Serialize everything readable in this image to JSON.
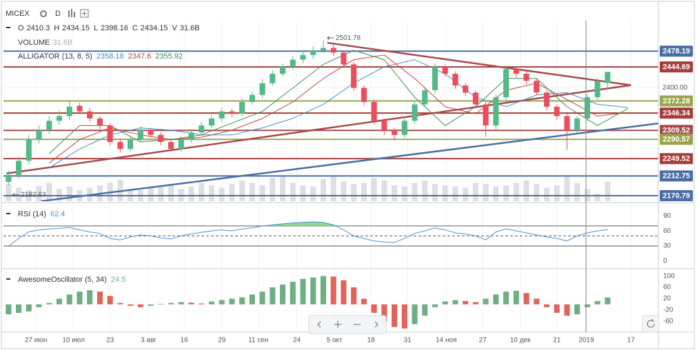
{
  "chart_data": [
    {
      "type": "candlestick",
      "title": "MICEX",
      "interval": "D",
      "legend_keys": [
        "O",
        "H",
        "L",
        "C",
        "V"
      ],
      "up_color": "#53b987",
      "down_color": "#eb4d5c",
      "xlim": [
        -0.5,
        64
      ],
      "ylim": [
        2159,
        2543
      ],
      "yticks": [
        {
          "value": 2400,
          "label": "2400.00"
        }
      ],
      "xticks": [
        {
          "value": 2.7,
          "label": "27 июн"
        },
        {
          "value": 6.4,
          "label": "10 июл"
        },
        {
          "value": 10,
          "label": "23"
        },
        {
          "value": 13.8,
          "label": "3 авг"
        },
        {
          "value": 17.3,
          "label": "16"
        },
        {
          "value": 21,
          "label": "29"
        },
        {
          "value": 24.6,
          "label": "11 сен"
        },
        {
          "value": 28.4,
          "label": "24"
        },
        {
          "value": 32.1,
          "label": "5 окт"
        },
        {
          "value": 35.7,
          "label": "18"
        },
        {
          "value": 39.3,
          "label": "31"
        },
        {
          "value": 43.1,
          "label": "14 ноя"
        },
        {
          "value": 46.7,
          "label": "27"
        },
        {
          "value": 50.4,
          "label": "10 дек"
        },
        {
          "value": 54,
          "label": "21"
        },
        {
          "value": 56.9,
          "label": "2019"
        },
        {
          "value": 61.3,
          "label": "17"
        }
      ],
      "open": [
        2200,
        2215,
        2245,
        2290,
        2310,
        2330,
        2340,
        2362,
        2350,
        2335,
        2320,
        2285,
        2270,
        2290,
        2310,
        2300,
        2285,
        2270,
        2290,
        2305,
        2320,
        2335,
        2350,
        2345,
        2370,
        2385,
        2410,
        2430,
        2445,
        2460,
        2470,
        2480,
        2485,
        2475,
        2450,
        2400,
        2370,
        2330,
        2310,
        2300,
        2330,
        2365,
        2395,
        2445,
        2430,
        2405,
        2390,
        2365,
        2320,
        2380,
        2440,
        2430,
        2415,
        2390,
        2360,
        2340,
        2310,
        2335,
        2380,
        2410.3
      ],
      "high": [
        2225,
        2255,
        2300,
        2320,
        2340,
        2352,
        2372,
        2368,
        2358,
        2340,
        2325,
        2292,
        2298,
        2318,
        2315,
        2305,
        2292,
        2298,
        2312,
        2328,
        2342,
        2358,
        2356,
        2378,
        2392,
        2418,
        2438,
        2452,
        2468,
        2478,
        2488,
        2501.78,
        2492,
        2480,
        2455,
        2405,
        2375,
        2335,
        2315,
        2338,
        2372,
        2402,
        2452,
        2450,
        2435,
        2410,
        2395,
        2370,
        2386,
        2448,
        2446,
        2435,
        2420,
        2395,
        2365,
        2345,
        2340,
        2386,
        2420,
        2434.15
      ],
      "low": [
        2192.63,
        2208,
        2238,
        2282,
        2302,
        2322,
        2332,
        2344,
        2328,
        2312,
        2278,
        2262,
        2265,
        2284,
        2294,
        2278,
        2264,
        2265,
        2284,
        2298,
        2314,
        2328,
        2338,
        2340,
        2364,
        2378,
        2404,
        2424,
        2438,
        2452,
        2462,
        2474,
        2468,
        2444,
        2394,
        2362,
        2322,
        2300,
        2288,
        2294,
        2324,
        2358,
        2388,
        2424,
        2398,
        2382,
        2358,
        2296,
        2312,
        2372,
        2422,
        2408,
        2384,
        2352,
        2332,
        2268,
        2302,
        2330,
        2375,
        2398.16
      ],
      "close": [
        2215,
        2245,
        2290,
        2310,
        2330,
        2340,
        2360,
        2350,
        2335,
        2320,
        2285,
        2270,
        2290,
        2310,
        2300,
        2285,
        2270,
        2290,
        2305,
        2320,
        2335,
        2350,
        2345,
        2370,
        2385,
        2410,
        2430,
        2445,
        2460,
        2470,
        2480,
        2485,
        2475,
        2450,
        2400,
        2370,
        2330,
        2310,
        2300,
        2330,
        2365,
        2395,
        2445,
        2430,
        2405,
        2390,
        2365,
        2320,
        2380,
        2440,
        2430,
        2415,
        2390,
        2360,
        2340,
        2310,
        2335,
        2380,
        2415,
        2434.15
      ],
      "volume": {
        "name": "VOLUME",
        "value_label": "31.6B",
        "color": "#dcdfe4",
        "ylim": [
          0,
          45
        ],
        "values": [
          28,
          22,
          18,
          25,
          30,
          20,
          24,
          18,
          22,
          26,
          30,
          35,
          20,
          18,
          22,
          25,
          28,
          20,
          24,
          30,
          26,
          22,
          28,
          34,
          30,
          26,
          38,
          42,
          30,
          26,
          24,
          36,
          40,
          32,
          28,
          30,
          38,
          34,
          26,
          24,
          30,
          34,
          28,
          26,
          24,
          22,
          30,
          28,
          24,
          26,
          30,
          34,
          28,
          22,
          26,
          40,
          30,
          20,
          12,
          31.6
        ]
      },
      "alligator": {
        "name": "ALLIGATOR (13, 8, 5)",
        "x": [
          4,
          7,
          10,
          13,
          16,
          19,
          22,
          25,
          28,
          31,
          34,
          37,
          40,
          43,
          46,
          49,
          52,
          55,
          58,
          61
        ],
        "series": [
          {
            "color": "#3d8fc8",
            "values": [
              2230,
              2270,
              2300,
              2315,
              2310,
              2300,
              2300,
              2315,
              2335,
              2365,
              2410,
              2445,
              2460,
              2430,
              2380,
              2360,
              2385,
              2390,
              2365,
              2358.18
            ]
          },
          {
            "color": "#c0463c",
            "values": [
              2240,
              2290,
              2315,
              2300,
              2290,
              2295,
              2310,
              2335,
              2370,
              2420,
              2460,
              2470,
              2420,
              2360,
              2345,
              2395,
              2410,
              2375,
              2340,
              2347.6
            ]
          },
          {
            "color": "#3f8a4c",
            "values": [
              2260,
              2320,
              2320,
              2285,
              2290,
              2300,
              2325,
              2350,
              2400,
              2450,
              2480,
              2460,
              2380,
              2320,
              2360,
              2420,
              2420,
              2360,
              2320,
              2355.92
            ]
          }
        ]
      },
      "levels": [
        {
          "value": 2478.19,
          "color": "#4a6fa5"
        },
        {
          "value": 2444.69,
          "color": "#a63d3d"
        },
        {
          "value": 2372.28,
          "color": "#9aa54b"
        },
        {
          "value": 2346.34,
          "color": "#a63d3d"
        },
        {
          "value": 2309.52,
          "color": "#a64b4b"
        },
        {
          "value": 2290.57,
          "color": "#9aa54b"
        },
        {
          "value": 2249.52,
          "color": "#a63d3d"
        },
        {
          "value": 2212.75,
          "color": "#4a6fa5"
        },
        {
          "value": 2170.79,
          "color": "#4a6fa5"
        }
      ],
      "trendlines": [
        {
          "color": "#a64b4b",
          "points": [
            [
              -0.2,
              2218
            ],
            [
              61.3,
              2405.8
            ]
          ]
        },
        {
          "color": "#a64b4b",
          "points": [
            [
              31.4,
              2496
            ],
            [
              61.3,
              2405.8
            ]
          ]
        },
        {
          "color": "#4a6fa5",
          "points": [
            [
              3.2,
              2159
            ],
            [
              64,
              2324.5
            ]
          ]
        }
      ]
    },
    {
      "type": "line",
      "title": "RSI (14)",
      "color": "#4a90d9",
      "fill_color": "#8fd88f",
      "ylim": [
        -12.6,
        111
      ],
      "yticks": [
        0,
        30,
        60,
        90
      ],
      "bands": [
        70,
        50,
        30
      ],
      "values": [
        30,
        45,
        58,
        62,
        64,
        65,
        67,
        62,
        58,
        55,
        45,
        42,
        48,
        52,
        50,
        46,
        44,
        50,
        54,
        57,
        60,
        62,
        60,
        64,
        66,
        70,
        72,
        74,
        76,
        77,
        78,
        77,
        72,
        62,
        50,
        45,
        40,
        38,
        37,
        45,
        55,
        60,
        66,
        62,
        56,
        54,
        50,
        42,
        58,
        64,
        60,
        56,
        52,
        48,
        45,
        40,
        50,
        56,
        60,
        62.4
      ]
    },
    {
      "type": "bar",
      "title": "AwesomeOscillator (5, 34)",
      "up_color": "#6fae82",
      "down_color": "#e0645a",
      "ylim": [
        -93,
        121
      ],
      "yticks": [
        -60,
        -20,
        20,
        60,
        100
      ],
      "values": [
        -35,
        -30,
        -25,
        -10,
        5,
        20,
        35,
        45,
        50,
        45,
        30,
        5,
        -5,
        -10,
        -5,
        2,
        5,
        8,
        6,
        3,
        10,
        15,
        20,
        25,
        35,
        45,
        60,
        70,
        80,
        90,
        95,
        100,
        98,
        85,
        60,
        20,
        -30,
        -60,
        -80,
        -85,
        -70,
        -40,
        -10,
        10,
        15,
        12,
        8,
        20,
        35,
        45,
        48,
        40,
        20,
        -10,
        -30,
        -40,
        -35,
        -10,
        12,
        24.5
      ]
    }
  ]
}
